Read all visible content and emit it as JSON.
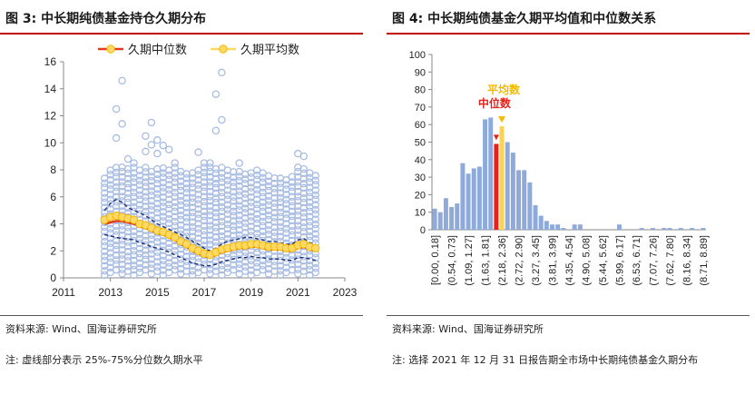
{
  "left": {
    "title": "图 3:  中长期纯债基金持仓久期分布",
    "source": "资料来源:  Wind、国海证券研究所",
    "note": "注:  虚线部分表示 25%-75%分位数久期水平"
  },
  "right": {
    "title": "图 4:  中长期纯债基金久期平均值和中位数关系",
    "source": "资料来源:  Wind、国海证券研究所",
    "note": "注: 选择 2021 年 12 月 31 日报告期全市场中长期纯债基金久期分布"
  },
  "colors": {
    "accent_rule": "#c00000",
    "scatter": "#a9bde3",
    "median_line": "#e23b1e",
    "mean_marker": "#ffd966",
    "mean_edge": "#f5b800",
    "quartile": "#1f2d6e",
    "bar": "#8eaadb",
    "median_bar": "#e8201a",
    "mean_bar": "#ffd24d"
  },
  "chart_data": [
    {
      "type": "scatter",
      "legend": [
        "久期中位数",
        "久期平均数"
      ],
      "legend_position": "top",
      "xlim": [
        2011,
        2023
      ],
      "ylim": [
        0,
        16
      ],
      "xticks": [
        "2011",
        "2013",
        "2015",
        "2017",
        "2019",
        "2021",
        "2023"
      ],
      "yticks": [
        "0",
        "2",
        "4",
        "6",
        "8",
        "10",
        "12",
        "14",
        "16"
      ],
      "grid": false,
      "x": [
        2012.75,
        2013.0,
        2013.25,
        2013.5,
        2013.75,
        2014.0,
        2014.25,
        2014.5,
        2014.75,
        2015.0,
        2015.25,
        2015.5,
        2015.75,
        2016.0,
        2016.25,
        2016.5,
        2016.75,
        2017.0,
        2017.25,
        2017.5,
        2017.75,
        2018.0,
        2018.25,
        2018.5,
        2018.75,
        2019.0,
        2019.25,
        2019.5,
        2019.75,
        2020.0,
        2020.25,
        2020.5,
        2020.75,
        2021.0,
        2021.25,
        2021.5,
        2021.75
      ],
      "series": [
        {
          "name": "久期中位数",
          "values": [
            4.0,
            4.1,
            4.2,
            4.2,
            4.1,
            4.0,
            3.8,
            3.7,
            3.5,
            3.3,
            3.2,
            3.0,
            2.8,
            2.5,
            2.3,
            2.0,
            1.8,
            1.6,
            1.5,
            1.7,
            1.9,
            2.0,
            2.1,
            2.2,
            2.2,
            2.3,
            2.3,
            2.2,
            2.1,
            2.1,
            2.1,
            2.0,
            2.0,
            2.2,
            2.3,
            2.1,
            2.0
          ]
        },
        {
          "name": "久期平均数",
          "values": [
            4.3,
            4.5,
            4.6,
            4.5,
            4.4,
            4.3,
            4.0,
            3.9,
            3.7,
            3.5,
            3.4,
            3.2,
            3.0,
            2.7,
            2.5,
            2.2,
            2.0,
            1.8,
            1.7,
            1.9,
            2.1,
            2.2,
            2.3,
            2.4,
            2.4,
            2.5,
            2.5,
            2.4,
            2.3,
            2.3,
            2.3,
            2.2,
            2.2,
            2.4,
            2.5,
            2.3,
            2.2
          ]
        },
        {
          "name": "75%分位数",
          "values": [
            5.0,
            5.5,
            5.8,
            5.6,
            5.2,
            5.0,
            4.8,
            4.6,
            4.3,
            4.0,
            3.8,
            3.6,
            3.4,
            3.2,
            3.0,
            2.7,
            2.5,
            2.2,
            2.0,
            2.2,
            2.5,
            2.7,
            2.8,
            2.9,
            3.0,
            3.0,
            2.9,
            2.8,
            2.7,
            2.7,
            2.6,
            2.5,
            2.5,
            2.8,
            2.9,
            2.6,
            2.5
          ]
        },
        {
          "name": "25%分位数",
          "values": [
            3.2,
            3.1,
            3.0,
            2.9,
            2.9,
            2.8,
            2.6,
            2.5,
            2.3,
            2.2,
            2.1,
            1.9,
            1.7,
            1.5,
            1.3,
            1.1,
            1.0,
            0.9,
            0.9,
            1.0,
            1.2,
            1.3,
            1.4,
            1.5,
            1.5,
            1.6,
            1.5,
            1.5,
            1.4,
            1.4,
            1.4,
            1.3,
            1.3,
            1.5,
            1.5,
            1.4,
            1.3
          ]
        },
        {
          "name": "individual_funds_upper",
          "values": [
            7.6,
            8.0,
            12.5,
            14.6,
            8.8,
            8.5,
            8.0,
            10.5,
            11.5,
            10.2,
            9.8,
            9.5,
            8.5,
            8.0,
            8.0,
            8.0,
            9.3,
            8.5,
            8.5,
            13.6,
            15.2,
            8.2,
            8.0,
            8.5,
            8.0,
            8.0,
            8.0,
            8.0,
            7.8,
            7.6,
            7.6,
            7.5,
            7.8,
            9.2,
            9.0,
            8.0,
            7.8
          ]
        }
      ]
    },
    {
      "type": "bar",
      "ylim": [
        0,
        100
      ],
      "yticks": [
        "0",
        "10",
        "20",
        "30",
        "40",
        "50",
        "60",
        "70",
        "80",
        "90",
        "100"
      ],
      "categories": [
        "[0.00, 0.18]",
        "(0.18, 0.36]",
        "(0.36, 0.54]",
        "(0.54, 0.73]",
        "(0.73, 0.91]",
        "(0.91, 1.09]",
        "(1.09, 1.27]",
        "(1.27, 1.45]",
        "(1.45, 1.63]",
        "(1.63, 1.81]",
        "(1.81, 2.00]",
        "(2.00, 2.18]",
        "(2.18, 2.36]",
        "(2.36, 2.54]",
        "(2.54, 2.72]",
        "(2.72, 2.90]",
        "(2.90, 3.08]",
        "(3.08, 3.27]",
        "(3.27, 3.45]",
        "(3.45, 3.63]",
        "(3.63, 3.81]",
        "(3.81, 3.99]",
        "(3.99, 4.17]",
        "(4.17, 4.35]",
        "(4.35, 4.54]",
        "(4.54, 4.72]",
        "(4.72, 4.90]",
        "(4.90, 5.08]",
        "(5.08, 5.26]",
        "(5.26, 5.44]",
        "(5.44, 5.62]",
        "(5.62, 5.81]",
        "(5.81, 5.99]",
        "(5.99, 6.17]",
        "(6.17, 6.35]",
        "(6.35, 6.53]",
        "(6.53, 6.71]",
        "(6.71, 6.89]",
        "(6.89, 7.07]",
        "(7.07, 7.26]",
        "(7.26, 7.44]",
        "(7.44, 7.62]",
        "(7.62, 7.80]",
        "(7.80, 7.98]",
        "(7.98, 8.16]",
        "(8.16, 8.34]",
        "(8.34, 8.53]",
        "(8.53, 8.71]",
        "(8.71, 8.89]"
      ],
      "xtick_labels": [
        "[0.00, 0.18]",
        "(0.54, 0.73]",
        "(1.09, 1.27]",
        "(1.63, 1.81]",
        "(2.18, 2.36]",
        "(2.72, 2.90]",
        "(3.27, 3.45]",
        "(3.81, 3.99]",
        "(4.35, 4.54]",
        "(4.90, 5.08]",
        "(5.44, 5.62]",
        "(5.99, 6.17]",
        "(6.53, 6.71]",
        "(7.07, 7.26]",
        "(7.62, 7.80]",
        "(8.16, 8.34]",
        "(8.71, 8.89]"
      ],
      "values": [
        12,
        10,
        18,
        13,
        15,
        38,
        32,
        35,
        36,
        63,
        64,
        49,
        59,
        50,
        44,
        34,
        34,
        27,
        14,
        8,
        5,
        3,
        3,
        1,
        0,
        3,
        3,
        0,
        0,
        0,
        0,
        0,
        0,
        3,
        0,
        0,
        0,
        1,
        0,
        1,
        0,
        1,
        1,
        0,
        1,
        0,
        1,
        0,
        1
      ],
      "highlight_median_index": 11,
      "highlight_mean_index": 12,
      "annotations": [
        "平均数",
        "中位数"
      ]
    }
  ]
}
